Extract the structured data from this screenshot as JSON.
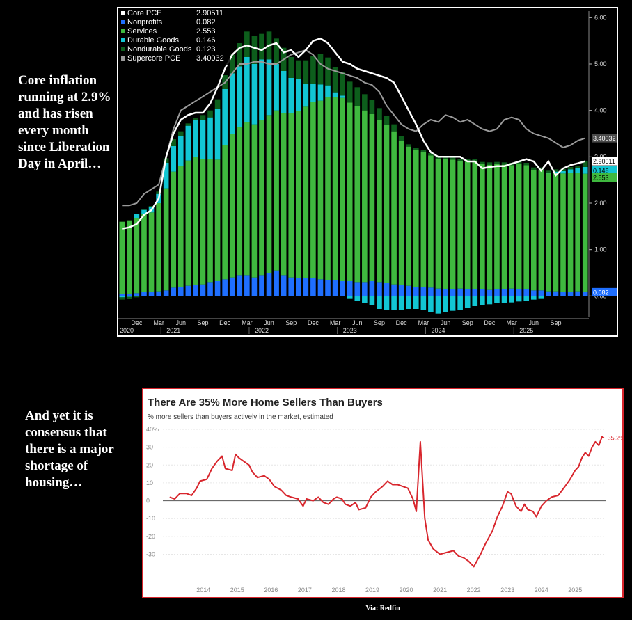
{
  "captions": {
    "top": "Core inflation running at 2.9% and has risen every month since Liberation Day in April…",
    "bottom": "And yet it is consensus that there is a major shortage of housing…",
    "source": "Via: Redfin"
  },
  "chart_data": [
    {
      "type": "bar",
      "stacked": true,
      "title": "",
      "legend": [
        {
          "name": "Core PCE",
          "value": "2.90511",
          "color": "#ffffff"
        },
        {
          "name": "Nonprofits",
          "value": "0.082",
          "color": "#1f6fff"
        },
        {
          "name": "Services",
          "value": "2.553",
          "color": "#3fb93f"
        },
        {
          "name": "Durable Goods",
          "value": "0.146",
          "color": "#12c6d3"
        },
        {
          "name": "Nondurable Goods",
          "value": "0.123",
          "color": "#0d5e1c"
        },
        {
          "name": "Supercore PCE",
          "value": "3.40032",
          "color": "#9a9a9a"
        }
      ],
      "end_labels": {
        "supercore": "3.40032",
        "core": "2.90511",
        "durable": "0.146",
        "services": "2.553",
        "nonprofits": "0.082"
      },
      "ylim": [
        -0.4,
        6.2
      ],
      "y_ticks": [
        "0.00",
        "1.00",
        "2.00",
        "3.00",
        "4.00",
        "5.00",
        "6.00"
      ],
      "x_ticks_month": [
        "Dec",
        "Mar",
        "Jun",
        "Sep",
        "Dec",
        "Mar",
        "Jun",
        "Sep",
        "Dec",
        "Mar",
        "Jun",
        "Sep",
        "Dec",
        "Mar",
        "Jun",
        "Sep",
        "Dec",
        "Mar",
        "Jun",
        "Sep"
      ],
      "x_ticks_year": [
        "2020",
        "2021",
        "2022",
        "2023",
        "2024",
        "2025"
      ],
      "series": {
        "nonprofits": [
          0.05,
          0.05,
          0.06,
          0.08,
          0.08,
          0.1,
          0.12,
          0.18,
          0.2,
          0.22,
          0.24,
          0.25,
          0.3,
          0.32,
          0.36,
          0.4,
          0.45,
          0.45,
          0.4,
          0.45,
          0.5,
          0.55,
          0.45,
          0.4,
          0.38,
          0.38,
          0.38,
          0.36,
          0.34,
          0.34,
          0.32,
          0.32,
          0.3,
          0.3,
          0.32,
          0.3,
          0.28,
          0.25,
          0.24,
          0.22,
          0.2,
          0.2,
          0.18,
          0.16,
          0.15,
          0.14,
          0.16,
          0.15,
          0.15,
          0.14,
          0.13,
          0.14,
          0.15,
          0.16,
          0.15,
          0.14,
          0.12,
          0.12,
          0.1,
          0.1,
          0.09,
          0.09,
          0.1,
          0.082
        ],
        "services": [
          1.55,
          1.58,
          1.62,
          1.68,
          1.72,
          1.9,
          2.2,
          2.5,
          2.6,
          2.7,
          2.75,
          2.7,
          2.65,
          2.62,
          2.9,
          3.1,
          3.2,
          3.3,
          3.3,
          3.35,
          3.4,
          3.45,
          3.5,
          3.55,
          3.6,
          3.7,
          3.8,
          3.85,
          3.95,
          3.95,
          3.95,
          3.85,
          3.8,
          3.7,
          3.6,
          3.5,
          3.4,
          3.3,
          3.1,
          3.0,
          2.95,
          2.9,
          2.85,
          2.8,
          2.8,
          2.8,
          2.75,
          2.75,
          2.75,
          2.7,
          2.7,
          2.7,
          2.68,
          2.66,
          2.7,
          2.68,
          2.6,
          2.6,
          2.55,
          2.56,
          2.55,
          2.56,
          2.56,
          2.553
        ],
        "durable": [
          -0.03,
          -0.02,
          0.08,
          0.1,
          0.12,
          0.2,
          0.55,
          0.55,
          0.65,
          0.75,
          0.8,
          0.85,
          0.9,
          1.1,
          1.2,
          1.3,
          1.3,
          1.4,
          1.3,
          1.3,
          1.2,
          1.0,
          0.9,
          0.75,
          0.7,
          0.5,
          0.4,
          0.35,
          0.25,
          0.1,
          0.05,
          -0.05,
          -0.1,
          -0.15,
          -0.2,
          -0.28,
          -0.3,
          -0.3,
          -0.3,
          -0.28,
          -0.28,
          -0.3,
          -0.35,
          -0.38,
          -0.35,
          -0.32,
          -0.3,
          -0.25,
          -0.22,
          -0.2,
          -0.18,
          -0.16,
          -0.16,
          -0.14,
          -0.12,
          -0.1,
          -0.08,
          -0.05,
          0.0,
          0.02,
          0.05,
          0.08,
          0.1,
          0.146
        ],
        "nondurable": [
          -0.05,
          -0.05,
          -0.03,
          0.0,
          0.02,
          0.05,
          0.1,
          0.15,
          0.1,
          0.05,
          0.05,
          0.1,
          0.15,
          0.2,
          0.3,
          0.4,
          0.5,
          0.55,
          0.6,
          0.55,
          0.6,
          0.55,
          0.5,
          0.45,
          0.4,
          0.5,
          0.6,
          0.65,
          0.6,
          0.55,
          0.5,
          0.45,
          0.4,
          0.35,
          0.3,
          0.25,
          0.2,
          0.15,
          0.1,
          0.05,
          0.05,
          0.05,
          0.05,
          0.05,
          0.05,
          0.05,
          0.05,
          0.05,
          0.05,
          0.05,
          0.05,
          0.05,
          0.05,
          0.05,
          0.05,
          0.05,
          0.05,
          0.05,
          0.05,
          0.05,
          0.05,
          0.05,
          0.05,
          0.123
        ],
        "core": [
          1.45,
          1.48,
          1.55,
          1.75,
          1.85,
          2.1,
          3.0,
          3.5,
          3.8,
          3.9,
          3.95,
          3.95,
          4.15,
          4.5,
          4.9,
          5.2,
          5.35,
          5.4,
          5.35,
          5.3,
          5.4,
          5.45,
          5.25,
          5.3,
          5.15,
          5.3,
          5.5,
          5.55,
          5.45,
          5.25,
          5.05,
          5.0,
          4.9,
          4.85,
          4.8,
          4.75,
          4.7,
          4.6,
          4.3,
          4.0,
          3.7,
          3.35,
          3.1,
          3.0,
          3.0,
          3.0,
          3.0,
          2.9,
          2.9,
          2.75,
          2.78,
          2.8,
          2.8,
          2.85,
          2.9,
          2.95,
          2.9,
          2.7,
          2.9,
          2.6,
          2.75,
          2.82,
          2.86,
          2.90511
        ],
        "supercore": [
          1.95,
          1.95,
          2.0,
          2.2,
          2.3,
          2.4,
          3.0,
          3.6,
          4.0,
          4.1,
          4.2,
          4.3,
          4.4,
          4.5,
          4.6,
          4.8,
          5.0,
          5.0,
          5.05,
          5.05,
          5.0,
          5.0,
          5.1,
          5.2,
          5.25,
          5.3,
          5.2,
          5.0,
          4.9,
          4.85,
          4.8,
          4.75,
          4.7,
          4.6,
          4.55,
          4.4,
          4.1,
          3.9,
          3.7,
          3.6,
          3.55,
          3.7,
          3.8,
          3.75,
          3.9,
          3.85,
          3.75,
          3.8,
          3.7,
          3.6,
          3.55,
          3.6,
          3.8,
          3.85,
          3.8,
          3.6,
          3.5,
          3.45,
          3.4,
          3.3,
          3.2,
          3.25,
          3.35,
          3.40032
        ]
      }
    },
    {
      "type": "line",
      "title": "There Are 35% More Home Sellers Than Buyers",
      "subtitle": "% more sellers than buyers actively in the market, estimated",
      "y_ticks": [
        "40%",
        "30",
        "20",
        "10",
        "0",
        "-10",
        "-20",
        "-30"
      ],
      "ylim": [
        -38,
        40
      ],
      "xlim": [
        2012.8,
        2025.9
      ],
      "x_ticks": [
        "2014",
        "2015",
        "2016",
        "2017",
        "2018",
        "2019",
        "2020",
        "2021",
        "2022",
        "2023",
        "2024",
        "2025"
      ],
      "end_label": "35.2%",
      "color": "#d8262d",
      "points": [
        [
          2013.0,
          2
        ],
        [
          2013.15,
          1
        ],
        [
          2013.3,
          4
        ],
        [
          2013.5,
          4
        ],
        [
          2013.65,
          3
        ],
        [
          2013.8,
          7
        ],
        [
          2013.9,
          11
        ],
        [
          2014.1,
          12
        ],
        [
          2014.25,
          18
        ],
        [
          2014.4,
          22
        ],
        [
          2014.55,
          25
        ],
        [
          2014.65,
          18
        ],
        [
          2014.85,
          17
        ],
        [
          2014.95,
          26
        ],
        [
          2015.05,
          24
        ],
        [
          2015.2,
          22
        ],
        [
          2015.35,
          20
        ],
        [
          2015.45,
          16
        ],
        [
          2015.6,
          13
        ],
        [
          2015.8,
          14
        ],
        [
          2015.95,
          12
        ],
        [
          2016.1,
          8
        ],
        [
          2016.3,
          6
        ],
        [
          2016.45,
          3
        ],
        [
          2016.6,
          2
        ],
        [
          2016.8,
          1
        ],
        [
          2016.95,
          -3
        ],
        [
          2017.05,
          1
        ],
        [
          2017.25,
          0
        ],
        [
          2017.4,
          2
        ],
        [
          2017.55,
          -1
        ],
        [
          2017.7,
          -2
        ],
        [
          2017.85,
          1
        ],
        [
          2017.95,
          2
        ],
        [
          2018.1,
          1
        ],
        [
          2018.2,
          -2
        ],
        [
          2018.35,
          -3
        ],
        [
          2018.5,
          -1
        ],
        [
          2018.6,
          -5
        ],
        [
          2018.8,
          -4
        ],
        [
          2018.95,
          2
        ],
        [
          2019.1,
          5
        ],
        [
          2019.3,
          8
        ],
        [
          2019.45,
          11
        ],
        [
          2019.6,
          9
        ],
        [
          2019.75,
          9
        ],
        [
          2019.9,
          8
        ],
        [
          2020.05,
          7
        ],
        [
          2020.2,
          1
        ],
        [
          2020.3,
          -6
        ],
        [
          2020.42,
          33
        ],
        [
          2020.55,
          -10
        ],
        [
          2020.65,
          -22
        ],
        [
          2020.8,
          -27
        ],
        [
          2021.0,
          -30
        ],
        [
          2021.2,
          -29
        ],
        [
          2021.4,
          -28
        ],
        [
          2021.55,
          -31
        ],
        [
          2021.7,
          -32
        ],
        [
          2021.85,
          -34
        ],
        [
          2022.0,
          -37
        ],
        [
          2022.2,
          -30
        ],
        [
          2022.35,
          -24
        ],
        [
          2022.55,
          -17
        ],
        [
          2022.7,
          -9
        ],
        [
          2022.85,
          -3
        ],
        [
          2023.0,
          5
        ],
        [
          2023.1,
          4
        ],
        [
          2023.25,
          -3
        ],
        [
          2023.4,
          -6
        ],
        [
          2023.5,
          -2
        ],
        [
          2023.6,
          -5
        ],
        [
          2023.75,
          -6
        ],
        [
          2023.85,
          -9
        ],
        [
          2024.0,
          -3
        ],
        [
          2024.15,
          0
        ],
        [
          2024.3,
          2
        ],
        [
          2024.5,
          3
        ],
        [
          2024.7,
          8
        ],
        [
          2024.85,
          12
        ],
        [
          2025.0,
          17
        ],
        [
          2025.1,
          19
        ],
        [
          2025.2,
          24
        ],
        [
          2025.3,
          27
        ],
        [
          2025.4,
          25
        ],
        [
          2025.5,
          30
        ],
        [
          2025.6,
          33
        ],
        [
          2025.7,
          31
        ],
        [
          2025.8,
          36
        ],
        [
          2025.85,
          35.2
        ]
      ]
    }
  ]
}
